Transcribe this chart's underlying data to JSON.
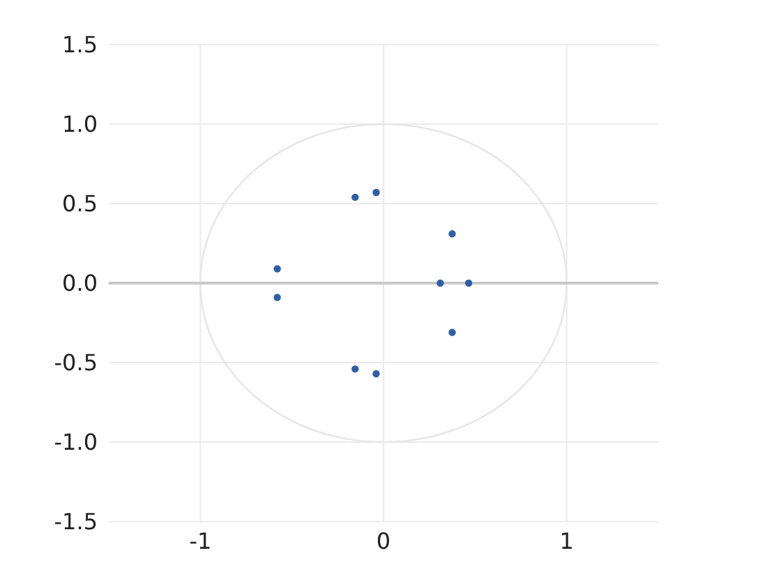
{
  "chart_data": {
    "type": "scatter",
    "series": [
      {
        "color": "#2f5fa8",
        "x": [
          -0.155,
          -0.04,
          0.375,
          -0.58,
          0.31,
          0.465,
          -0.58,
          0.375,
          -0.155,
          -0.04
        ],
        "values": [
          0.54,
          0.57,
          0.31,
          0.09,
          0,
          0,
          -0.09,
          -0.31,
          -0.54,
          -0.57
        ]
      }
    ],
    "xlim": [
      -1.5,
      1.5
    ],
    "xticks": [
      -1,
      0,
      1
    ],
    "ylim": [
      -1.5,
      1.5
    ],
    "yticks": [
      -1.5,
      {
        "value": -1,
        "label": "-1.0"
      },
      -0.5,
      {
        "value": 0,
        "label": "0.0"
      },
      0.5,
      {
        "value": 1,
        "label": "1.0"
      },
      1.5
    ],
    "grid": true,
    "marker": "circle",
    "legend": false,
    "ref_lines": [
      {
        "axis": "y",
        "value": 0,
        "color": "#c8c8c8"
      }
    ]
  }
}
